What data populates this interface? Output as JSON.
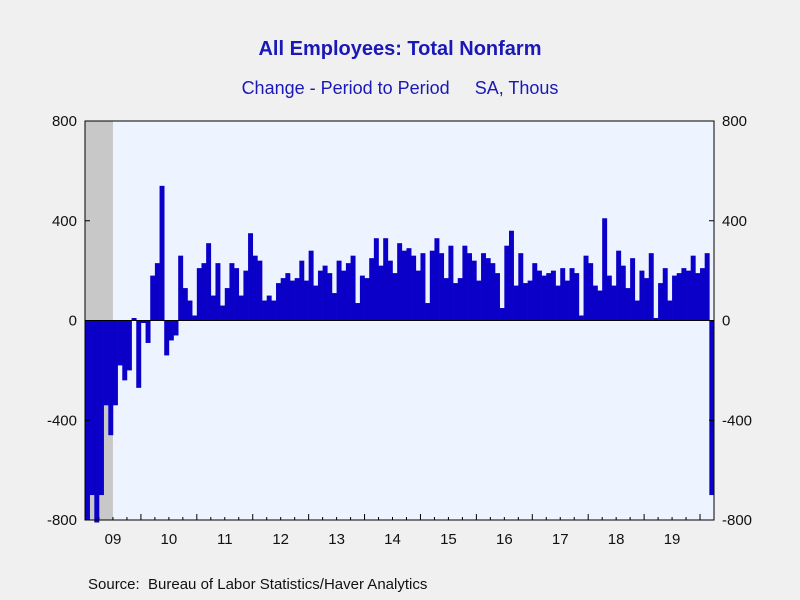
{
  "chart_data": {
    "type": "bar",
    "title": "All Employees: Total Nonfarm",
    "subtitle_left": "Change - Period to Period",
    "subtitle_right": "SA, Thous",
    "source": "Source:  Bureau of Labor Statistics/Haver Analytics",
    "ylim": [
      -800,
      800
    ],
    "y_ticks": [
      800,
      400,
      0,
      -400,
      -800
    ],
    "y_tick_labels": [
      "800",
      "400",
      "0",
      "-400",
      "-800"
    ],
    "x_tick_labels": [
      "09",
      "10",
      "11",
      "12",
      "13",
      "14",
      "15",
      "16",
      "17",
      "18",
      "19"
    ],
    "start": "2009-01",
    "recession": {
      "start": "2009-01",
      "end": "2009-06"
    },
    "x_range_months": 135,
    "colors": {
      "bar": "#0a00c8",
      "plot_bg": "#eef4ff",
      "recession": "#c8c8c8",
      "text": "#1a18b8"
    },
    "values": [
      -800,
      -700,
      -810,
      -700,
      -340,
      -460,
      -340,
      -180,
      -240,
      -200,
      10,
      -270,
      -10,
      -90,
      180,
      230,
      540,
      -140,
      -80,
      -60,
      260,
      130,
      80,
      20,
      210,
      230,
      310,
      100,
      230,
      60,
      130,
      230,
      210,
      100,
      200,
      350,
      260,
      240,
      80,
      100,
      80,
      150,
      170,
      190,
      160,
      170,
      240,
      160,
      280,
      140,
      200,
      220,
      190,
      110,
      240,
      200,
      230,
      260,
      70,
      180,
      170,
      250,
      330,
      220,
      330,
      240,
      190,
      310,
      280,
      290,
      260,
      200,
      270,
      70,
      280,
      330,
      270,
      170,
      300,
      150,
      170,
      300,
      270,
      240,
      160,
      270,
      250,
      230,
      190,
      50,
      300,
      360,
      140,
      270,
      150,
      160,
      230,
      200,
      180,
      190,
      200,
      140,
      210,
      160,
      210,
      190,
      20,
      260,
      230,
      140,
      120,
      410,
      180,
      140,
      280,
      220,
      130,
      250,
      80,
      200,
      170,
      270,
      10,
      150,
      210,
      80,
      180,
      190,
      210,
      200,
      260,
      190,
      210,
      270,
      -700
    ]
  }
}
